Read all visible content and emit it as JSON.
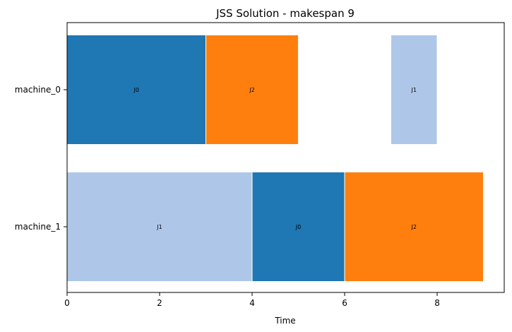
{
  "chart_data": {
    "type": "bar",
    "orientation": "horizontal-gantt",
    "title": "JSS Solution - makespan 9",
    "xlabel": "Time",
    "ylabel": "",
    "xlim": [
      0,
      9.45
    ],
    "x_ticks": [
      0,
      2,
      4,
      6,
      8
    ],
    "categories": [
      "machine_0",
      "machine_1"
    ],
    "grid": false,
    "legend": "none",
    "job_colors": {
      "J0": "#1f77b4",
      "J1": "#aec7e8",
      "J2": "#ff7f0e"
    },
    "tasks": [
      {
        "machine": "machine_0",
        "job": "J0",
        "start": 0,
        "end": 3
      },
      {
        "machine": "machine_0",
        "job": "J2",
        "start": 3,
        "end": 5
      },
      {
        "machine": "machine_0",
        "job": "J1",
        "start": 7,
        "end": 8
      },
      {
        "machine": "machine_1",
        "job": "J1",
        "start": 0,
        "end": 4
      },
      {
        "machine": "machine_1",
        "job": "J0",
        "start": 4,
        "end": 6
      },
      {
        "machine": "machine_1",
        "job": "J2",
        "start": 6,
        "end": 9
      }
    ]
  }
}
